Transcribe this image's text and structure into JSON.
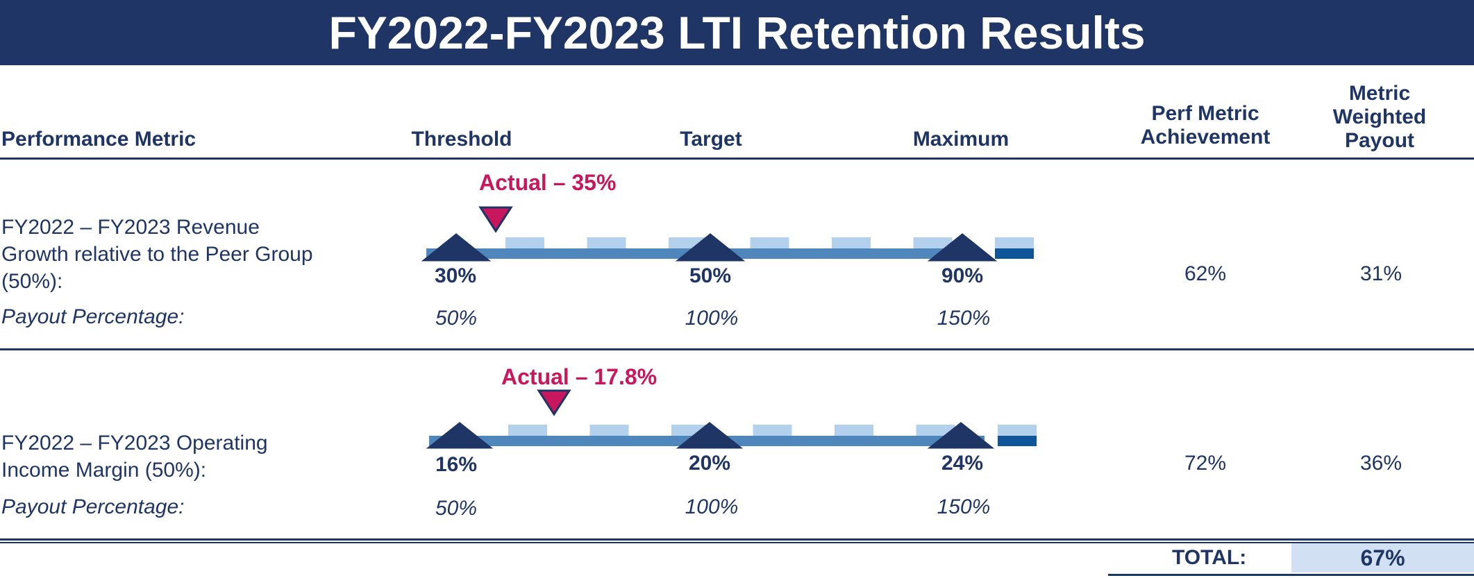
{
  "title": "FY2022-FY2023 LTI Retention Results",
  "headers": {
    "metric": "Performance Metric",
    "threshold": "Threshold",
    "target": "Target",
    "maximum": "Maximum",
    "achievement_line1": "Perf Metric",
    "achievement_line2": "Achievement",
    "weighted_line1": "Metric",
    "weighted_line2": "Weighted",
    "weighted_line3": "Payout"
  },
  "colors": {
    "navy": "#1f3566",
    "accent_magenta": "#c8175d",
    "bar_mid": "#4f87bd",
    "bar_light": "#b3d1ec",
    "bar_dark": "#0f5597",
    "total_fill": "#d2e0f3"
  },
  "rows": [
    {
      "name_line1": "FY2022 – FY2023 Revenue",
      "name_line2": "Growth relative to the Peer Group",
      "name_line3": "(50%):",
      "payout_label": "Payout Percentage:",
      "actual_label": "Actual – 35%",
      "actual_position_fraction": 0.125,
      "threshold": "30%",
      "target": "50%",
      "maximum": "90%",
      "payout_threshold": "50%",
      "payout_target": "100%",
      "payout_maximum": "150%",
      "achievement": "62%",
      "weighted_payout": "31%"
    },
    {
      "name_line1": "FY2022 – FY2023 Operating",
      "name_line2": "Income Margin (50%):",
      "payout_label": "Payout Percentage:",
      "actual_label": "Actual – 17.8%",
      "actual_position_fraction": 0.225,
      "threshold": "16%",
      "target": "20%",
      "maximum": "24%",
      "payout_threshold": "50%",
      "payout_target": "100%",
      "payout_maximum": "150%",
      "achievement": "72%",
      "weighted_payout": "36%"
    }
  ],
  "total": {
    "label": "TOTAL:",
    "value": "67%"
  }
}
